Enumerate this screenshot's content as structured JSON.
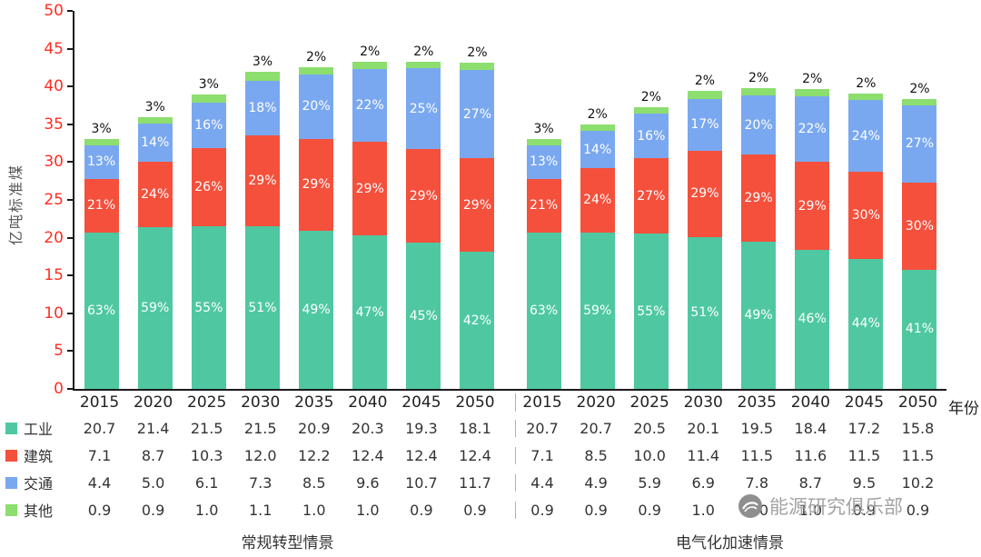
{
  "chart_data": {
    "type": "bar",
    "stacked": true,
    "ylabel": "亿吨标准煤",
    "xlabel": "年份",
    "ylim": [
      0,
      50
    ],
    "yticks": [
      0,
      5,
      10,
      15,
      20,
      25,
      30,
      35,
      40,
      45,
      50
    ],
    "axis_tick_color": "#ff2d23",
    "grid": false,
    "categories": [
      "2015",
      "2020",
      "2025",
      "2030",
      "2035",
      "2040",
      "2045",
      "2050"
    ],
    "series_meta": [
      {
        "label": "工业",
        "slug": "industry",
        "color": "#4FC8A1"
      },
      {
        "label": "建筑",
        "slug": "building",
        "color": "#F4503C"
      },
      {
        "label": "交通",
        "slug": "transport",
        "color": "#7AA8F0"
      },
      {
        "label": "其他",
        "slug": "other",
        "color": "#8CDE6E"
      }
    ],
    "groups": [
      {
        "label": "常规转型情景",
        "series": {
          "工业": [
            20.7,
            21.4,
            21.5,
            21.5,
            20.9,
            20.3,
            19.3,
            18.1
          ],
          "建筑": [
            7.1,
            8.7,
            10.3,
            12.0,
            12.2,
            12.4,
            12.4,
            12.4
          ],
          "交通": [
            4.4,
            5.0,
            6.1,
            7.3,
            8.5,
            9.6,
            10.7,
            11.7
          ],
          "其他": [
            0.9,
            0.9,
            1.0,
            1.1,
            1.0,
            1.0,
            0.9,
            0.9
          ]
        },
        "segment_pct_labels": {
          "工业": [
            "63%",
            "59%",
            "55%",
            "51%",
            "49%",
            "47%",
            "45%",
            "42%"
          ],
          "建筑": [
            "21%",
            "24%",
            "26%",
            "29%",
            "29%",
            "29%",
            "29%",
            "29%"
          ],
          "交通": [
            "13%",
            "14%",
            "16%",
            "18%",
            "20%",
            "22%",
            "25%",
            "27%"
          ]
        },
        "top_labels": [
          "3%",
          "3%",
          "3%",
          "3%",
          "2%",
          "2%",
          "2%",
          "2%"
        ]
      },
      {
        "label": "电气化加速情景",
        "series": {
          "工业": [
            20.7,
            20.7,
            20.5,
            20.1,
            19.5,
            18.4,
            17.2,
            15.8
          ],
          "建筑": [
            7.1,
            8.5,
            10.0,
            11.4,
            11.5,
            11.6,
            11.5,
            11.5
          ],
          "交通": [
            4.4,
            4.9,
            5.9,
            6.9,
            7.8,
            8.7,
            9.5,
            10.2
          ],
          "其他": [
            0.9,
            0.9,
            0.9,
            1.0,
            1.0,
            1.0,
            0.9,
            0.9
          ]
        },
        "segment_pct_labels": {
          "工业": [
            "63%",
            "59%",
            "55%",
            "51%",
            "49%",
            "46%",
            "44%",
            "41%"
          ],
          "建筑": [
            "21%",
            "24%",
            "27%",
            "29%",
            "29%",
            "29%",
            "30%",
            "30%"
          ],
          "交通": [
            "13%",
            "14%",
            "16%",
            "17%",
            "20%",
            "22%",
            "24%",
            "27%"
          ]
        },
        "top_labels": [
          "3%",
          "2%",
          "2%",
          "2%",
          "2%",
          "2%",
          "2%",
          "2%"
        ]
      }
    ]
  },
  "watermark": {
    "text": "能源研究俱乐部"
  }
}
